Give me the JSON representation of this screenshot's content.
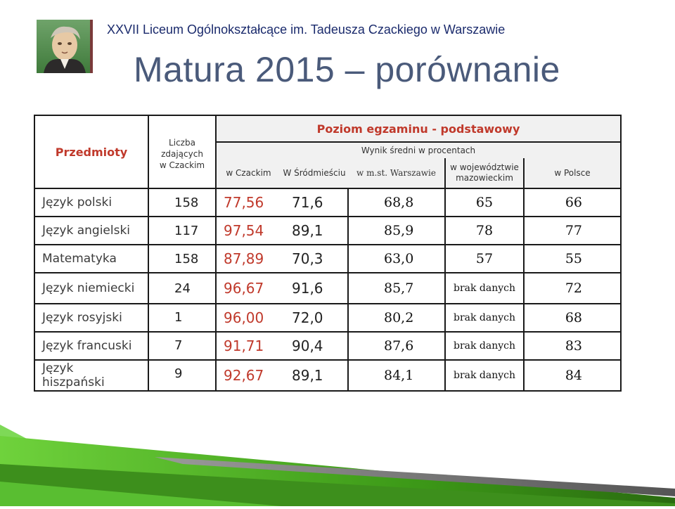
{
  "header": {
    "school_name": "XXVII Liceum Ogólnokształcące im. Tadeusza Czackiego w Warszawie",
    "title": "Matura 2015 – porównanie"
  },
  "table": {
    "subjects_header": "Przedmioty",
    "count_header": [
      "Liczba",
      "zdających",
      "w Czackim"
    ],
    "level_header": "Poziom egzaminu - podstawowy",
    "avg_header": "Wynik średni w procentach",
    "columns": [
      "w Czackim",
      "W Śródmieściu",
      "w m.st. Warszawie",
      "w województwie mazowieckim",
      "w Polsce"
    ],
    "rows": [
      {
        "subject": "Język polski",
        "count": "158",
        "czacki": "77,56",
        "srodmiescie": "71,6",
        "warszawa": "68,8",
        "wojewodztwo": "65",
        "polska": "66"
      },
      {
        "subject": "Język angielski",
        "count": "117",
        "czacki": "97,54",
        "srodmiescie": "89,1",
        "warszawa": "85,9",
        "wojewodztwo": "78",
        "polska": "77"
      },
      {
        "subject": "Matematyka",
        "count": "158",
        "czacki": "87,89",
        "srodmiescie": "70,3",
        "warszawa": "63,0",
        "wojewodztwo": "57",
        "polska": "55"
      },
      {
        "subject": "Język niemiecki",
        "count": "24",
        "czacki": "96,67",
        "srodmiescie": "91,6",
        "warszawa": "85,7",
        "wojewodztwo": "brak danych",
        "polska": "72"
      },
      {
        "subject": "Język rosyjski",
        "count": "1",
        "czacki": "96,00",
        "srodmiescie": "72,0",
        "warszawa": "80,2",
        "wojewodztwo": "brak danych",
        "polska": "68"
      },
      {
        "subject": "Język francuski",
        "count": "7",
        "czacki": "91,71",
        "srodmiescie": "90,4",
        "warszawa": "87,6",
        "wojewodztwo": "brak danych",
        "polska": "83"
      },
      {
        "subject": "Język hiszpański",
        "count": "9",
        "czacki": "92,67",
        "srodmiescie": "89,1",
        "warszawa": "84,1",
        "wojewodztwo": "brak danych",
        "polska": "84"
      }
    ]
  },
  "colors": {
    "accent_red": "#c0392b",
    "title_gray": "#4a5a7a",
    "school_blue": "#1a2a6c",
    "green_stripe": "#4cae1e"
  }
}
